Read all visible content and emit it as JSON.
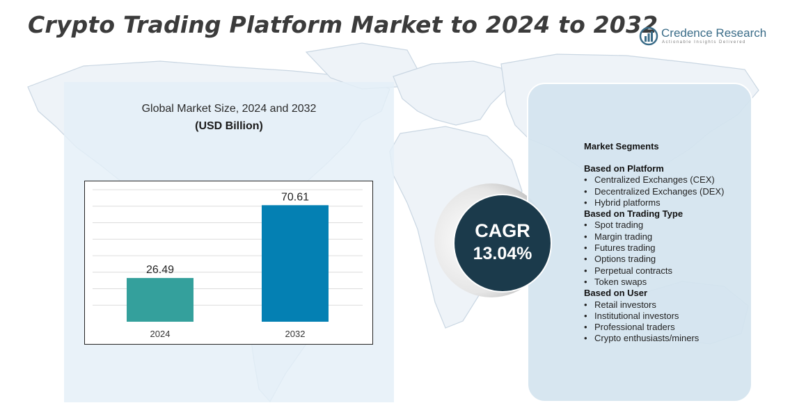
{
  "header": {
    "title": "Crypto Trading Platform Market to 2024 to 2032"
  },
  "logo": {
    "name": "Credence Research",
    "tagline": "Actionable Insights Delivered"
  },
  "colors": {
    "bar_2024": "#34a09c",
    "bar_2032": "#0480b3",
    "cagr_circle": "#1b3a4b",
    "panel_bg": "#e4eff8",
    "segment_panel_bg": "#d4e4ef"
  },
  "chart_data": {
    "type": "bar",
    "title": "Global Market Size, 2024 and 2032",
    "subtitle": "(USD Billion)",
    "categories": [
      "2024",
      "2032"
    ],
    "values": [
      26.49,
      70.61
    ],
    "value_labels": [
      "26.49",
      "70.61"
    ],
    "ylim": [
      0,
      80
    ],
    "grid": true,
    "xlabel": "",
    "ylabel": ""
  },
  "cagr": {
    "label": "CAGR",
    "value": "13.04%"
  },
  "segments": {
    "title": "Market Segments",
    "groups": [
      {
        "title": "Based on Platform",
        "items": [
          "Centralized Exchanges (CEX)",
          "Decentralized Exchanges (DEX)",
          "Hybrid platforms"
        ]
      },
      {
        "title": "Based on Trading Type",
        "items": [
          "Spot trading",
          "Margin trading",
          "Futures trading",
          "Options trading",
          "Perpetual contracts",
          "Token swaps"
        ]
      },
      {
        "title": "Based on User",
        "items": [
          "Retail investors",
          "Institutional investors",
          "Professional  traders",
          "Crypto enthusiasts/miners"
        ]
      }
    ]
  }
}
